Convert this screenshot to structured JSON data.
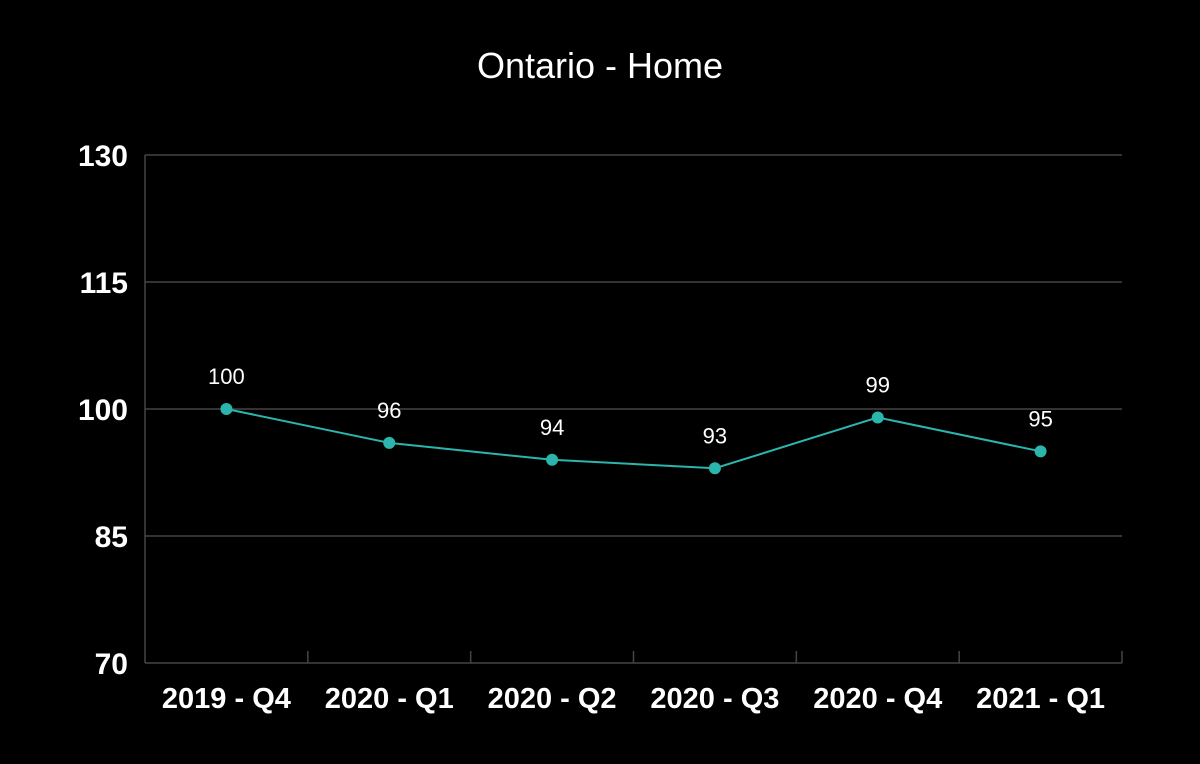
{
  "chart_data": {
    "type": "line",
    "title": "Ontario - Home",
    "categories": [
      "2019 - Q4",
      "2020 - Q1",
      "2020 - Q2",
      "2020 - Q3",
      "2020 - Q4",
      "2021 - Q1"
    ],
    "series": [
      {
        "values": [
          100,
          96,
          94,
          93,
          99,
          95
        ]
      }
    ],
    "data_labels": [
      "100",
      "96",
      "94",
      "93",
      "99",
      "95"
    ],
    "ylim": [
      70,
      130
    ],
    "yticks": [
      70,
      85,
      100,
      115,
      130
    ],
    "ytick_labels": [
      "70",
      "85",
      "100",
      "115",
      "130"
    ],
    "grid": true,
    "colors": {
      "background": "#000000",
      "line": "#2bb5ad",
      "marker": "#2bb5ad",
      "gridline": "#444444",
      "text": "#ffffff"
    }
  }
}
